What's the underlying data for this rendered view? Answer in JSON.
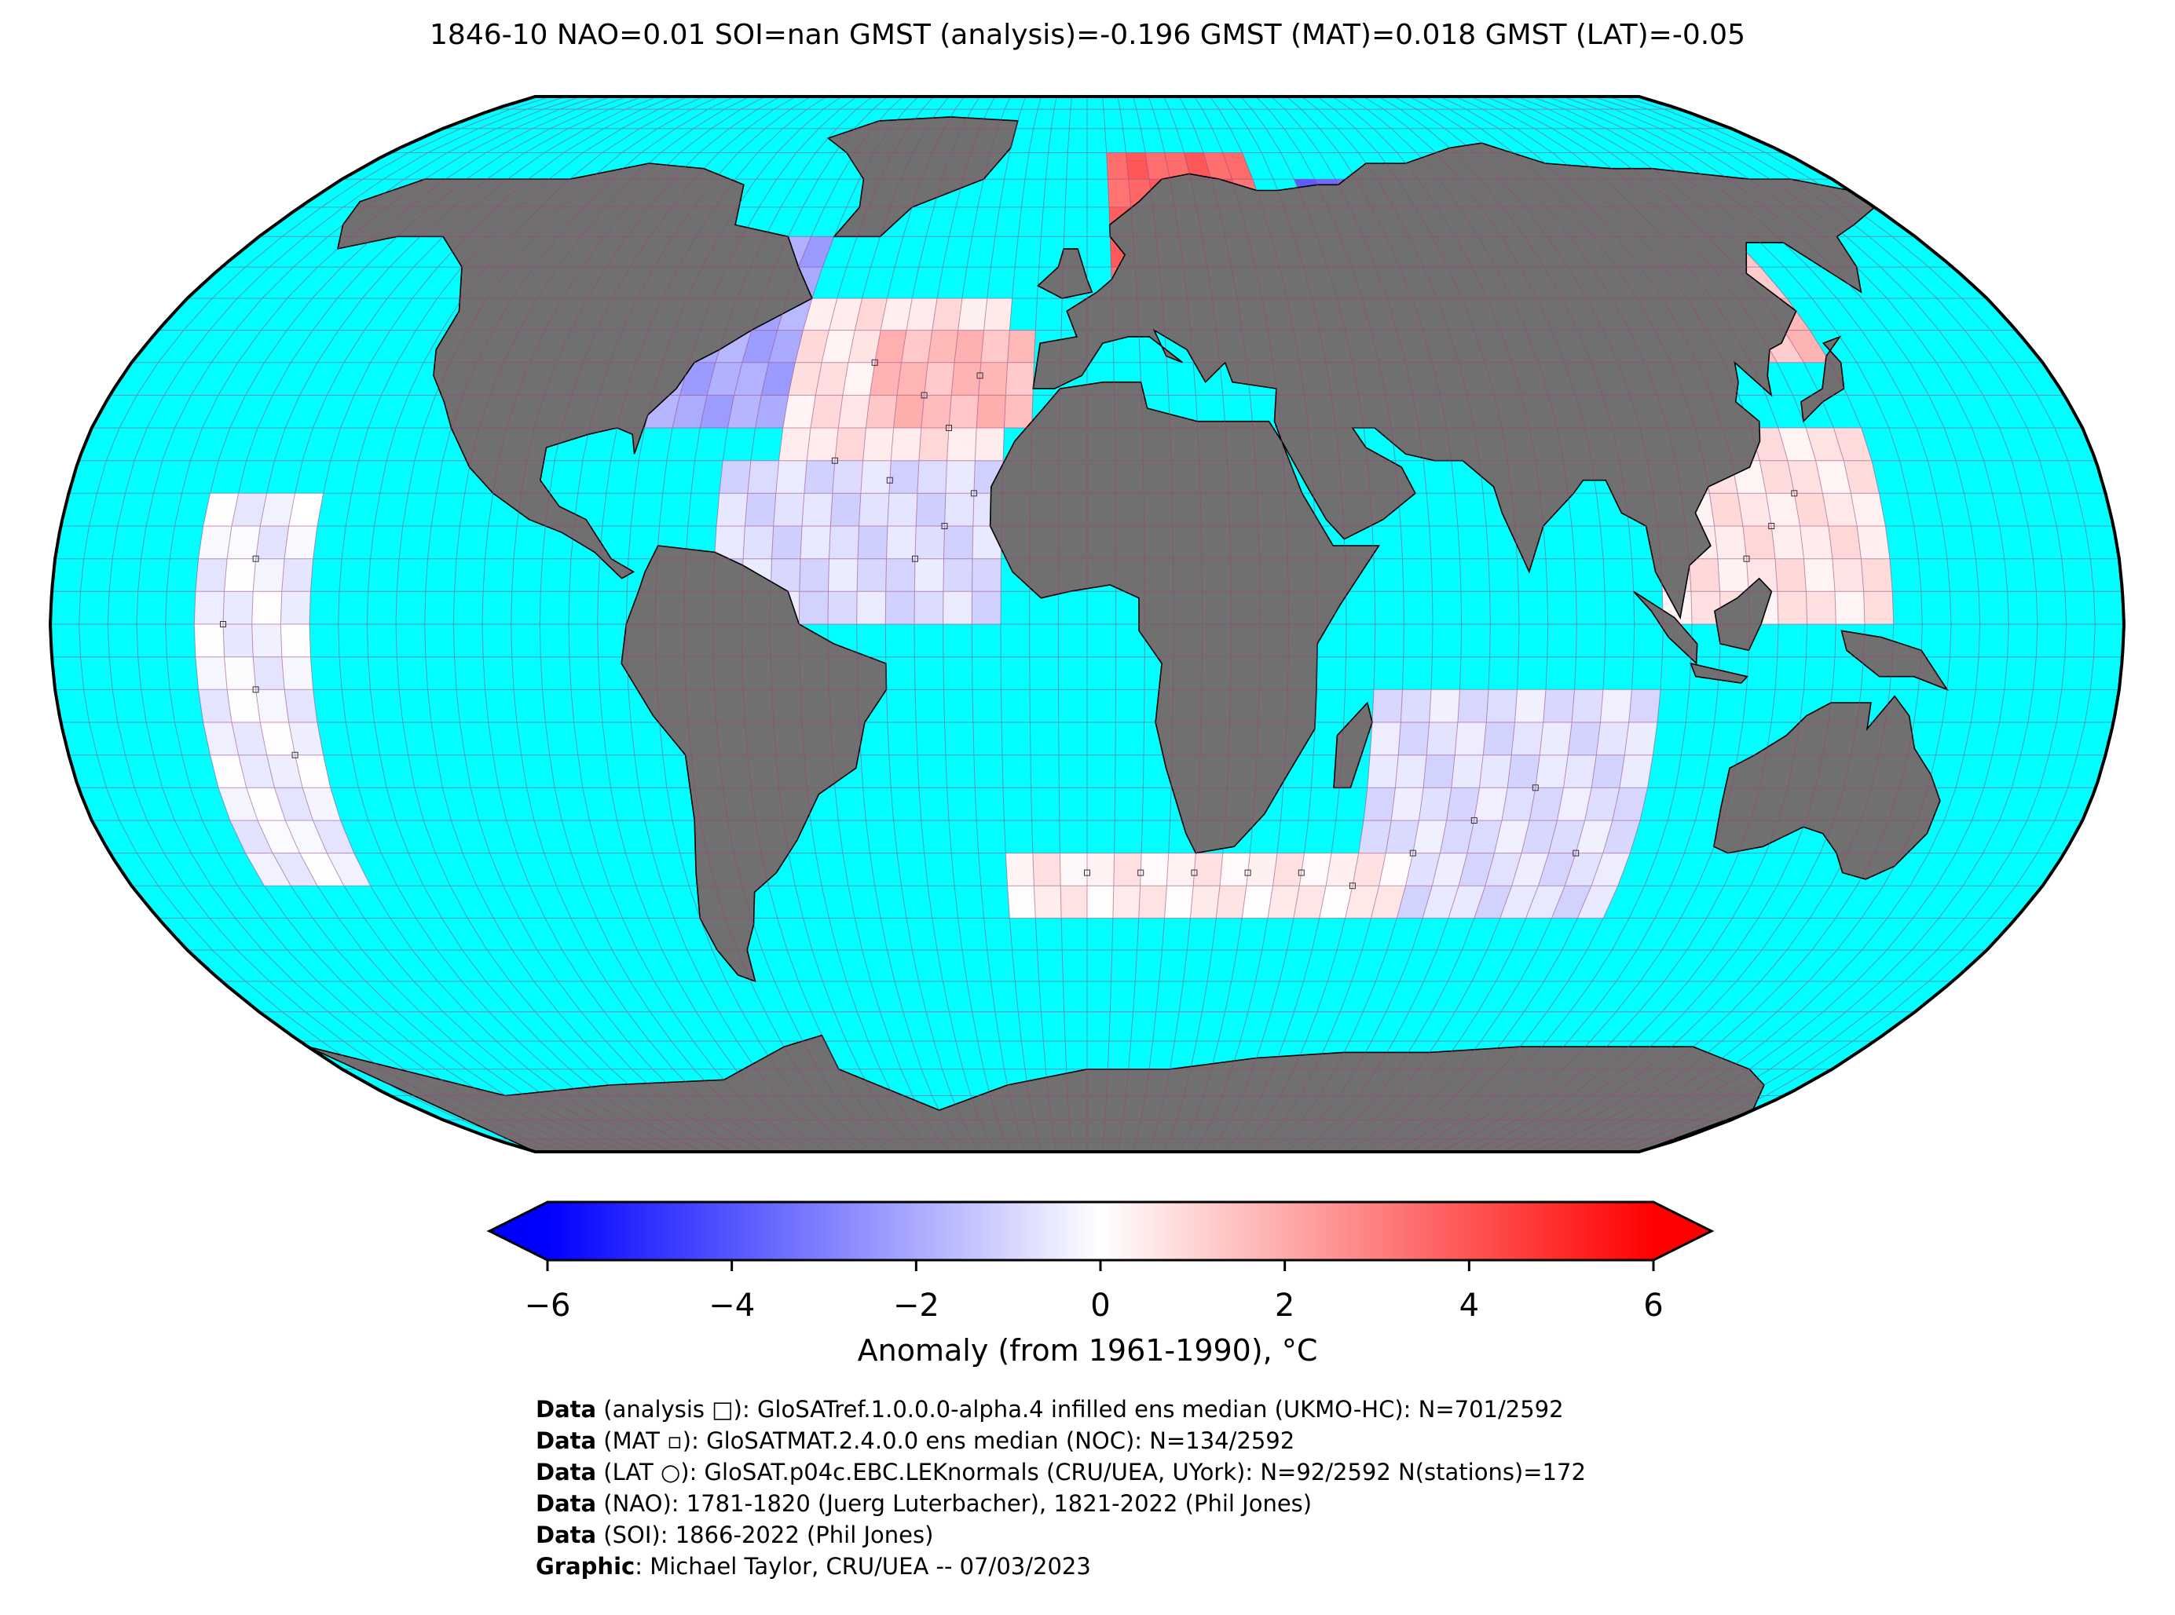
{
  "title": "1846-10 NAO=0.01 SOI=nan GMST (analysis)=-0.196 GMST (MAT)=0.018 GMST (LAT)=-0.05",
  "colors": {
    "ocean": "#00ffff",
    "land": "#707070",
    "coastline": "#000000",
    "graticule": "#a04080",
    "cold_extreme": "#0000ff",
    "neutral": "#ffffff",
    "warm_extreme": "#ff0000"
  },
  "map": {
    "projection": "Robinson",
    "grid_resolution_deg": 5,
    "anomaly_regions": [
      {
        "name": "north-america",
        "lon": [
          -110,
          -55
        ],
        "lat": [
          30,
          60
        ],
        "anomaly": -2.0
      },
      {
        "name": "north-atlantic",
        "lon": [
          -55,
          -15
        ],
        "lat": [
          20,
          50
        ],
        "anomaly": 0.6
      },
      {
        "name": "central-atlantic",
        "lon": [
          -40,
          -10
        ],
        "lat": [
          30,
          45
        ],
        "anomaly": 1.6
      },
      {
        "name": "tropical-atlantic",
        "lon": [
          -65,
          -15
        ],
        "lat": [
          0,
          25
        ],
        "anomaly": -0.8
      },
      {
        "name": "northern-europe",
        "lon": [
          5,
          40
        ],
        "lat": [
          50,
          75
        ],
        "anomaly": 3.6
      },
      {
        "name": "siberia",
        "lon": [
          50,
          100
        ],
        "lat": [
          45,
          70
        ],
        "anomaly": -3.5
      },
      {
        "name": "east-asia",
        "lon": [
          100,
          140
        ],
        "lat": [
          40,
          70
        ],
        "anomaly": 1.5
      },
      {
        "name": "indian-ocean",
        "lon": [
          50,
          100
        ],
        "lat": [
          -45,
          -10
        ],
        "anomaly": -0.7
      },
      {
        "name": "western-pacific",
        "lon": [
          100,
          140
        ],
        "lat": [
          0,
          30
        ],
        "anomaly": 0.6
      },
      {
        "name": "eastern-pacific",
        "lon": [
          -155,
          -135
        ],
        "lat": [
          -40,
          20
        ],
        "anomaly": -0.3
      },
      {
        "name": "southern-ocean",
        "lon": [
          -15,
          60
        ],
        "lat": [
          -45,
          -35
        ],
        "anomaly": 0.4
      }
    ]
  },
  "colorbar": {
    "min": -6,
    "max": 6,
    "ticks": [
      "−6",
      "−4",
      "−2",
      "0",
      "2",
      "4",
      "6"
    ],
    "label": "Anomaly (from 1961-1990), °C"
  },
  "credits": [
    {
      "bold": "Data",
      "text": " (analysis □): GloSATref.1.0.0.0-alpha.4 infilled ens median (UKMO-HC): N=701/2592"
    },
    {
      "bold": "Data",
      "text": " (MAT ▫): GloSATMAT.2.4.0.0 ens median (NOC): N=134/2592"
    },
    {
      "bold": "Data",
      "text": " (LAT ○): GloSAT.p04c.EBC.LEKnormals (CRU/UEA, UYork): N=92/2592 N(stations)=172"
    },
    {
      "bold": "Data",
      "text": " (NAO): 1781-1820 (Juerg Luterbacher), 1821-2022 (Phil Jones)"
    },
    {
      "bold": "Data",
      "text": " (SOI): 1866-2022 (Phil Jones)"
    },
    {
      "bold": "Graphic",
      "text": ": Michael Taylor, CRU/UEA -- 07/03/2023"
    }
  ]
}
